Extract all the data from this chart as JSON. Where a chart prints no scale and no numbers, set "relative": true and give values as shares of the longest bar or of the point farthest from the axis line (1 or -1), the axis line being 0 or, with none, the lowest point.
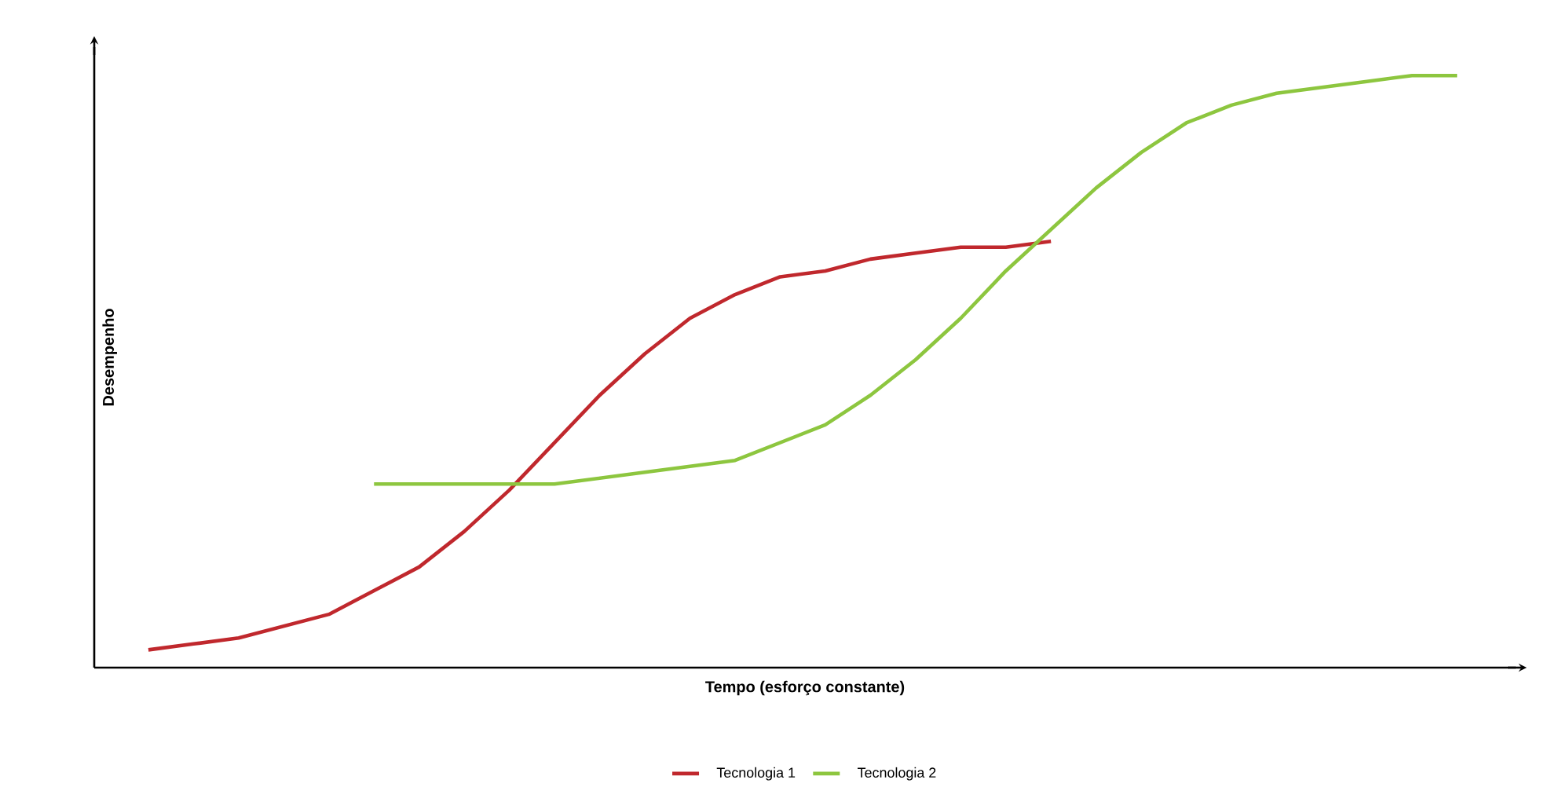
{
  "chart_data": {
    "type": "line",
    "relative": true,
    "xlabel": "Tempo (esforço constante)",
    "ylabel": "Desempenho",
    "legend": "bottom",
    "categories": [
      null,
      null,
      null,
      null,
      null,
      null,
      null,
      null,
      null,
      null,
      null,
      null,
      null,
      null,
      null,
      null,
      null,
      null,
      null,
      null,
      null,
      null,
      null,
      null,
      null,
      null,
      null,
      null,
      null,
      null
    ],
    "series": [
      {
        "name": "Tecnologia 1",
        "color": "#c0282d",
        "values": [
          0.03,
          0.04,
          0.05,
          0.07,
          0.09,
          0.13,
          0.17,
          0.23,
          0.3,
          0.38,
          0.46,
          0.53,
          0.59,
          0.63,
          0.66,
          0.67,
          0.69,
          0.7,
          0.71,
          0.71,
          0.72,
          null,
          null,
          null,
          null,
          null,
          null,
          null,
          null,
          null
        ]
      },
      {
        "name": "Tecnologia 2",
        "color": "#8dc63f",
        "values": [
          null,
          null,
          null,
          null,
          null,
          0.31,
          0.31,
          0.31,
          0.31,
          0.31,
          0.32,
          0.33,
          0.34,
          0.35,
          0.38,
          0.41,
          0.46,
          0.52,
          0.59,
          0.67,
          0.74,
          0.81,
          0.87,
          0.92,
          0.95,
          0.97,
          0.98,
          0.99,
          1.0,
          1.0
        ]
      }
    ]
  }
}
